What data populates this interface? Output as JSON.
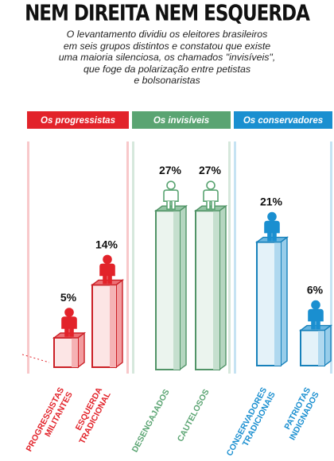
{
  "title": "NEM DIREITA NEM ESQUERDA",
  "subtitle_lines": [
    "O levantamento dividiu os eleitores brasileiros",
    "em seis grupos distintos e constatou que existe",
    "uma maioria silenciosa, os chamados \"invisíveis\",",
    "que foge da polarização entre petistas",
    "e bolsonaristas"
  ],
  "chart_data": {
    "type": "bar",
    "value_format": "percent",
    "groups": [
      {
        "name": "Os progressistas",
        "color": "#e2232a"
      },
      {
        "name": "Os invisíveis",
        "color": "#5aa472"
      },
      {
        "name": "Os conservadores",
        "color": "#1a8fd0"
      }
    ],
    "bars": [
      {
        "category_lines": [
          "PROGRESSISTAS",
          "MILITANTES"
        ],
        "value": 5,
        "group": 0,
        "label": "5%"
      },
      {
        "category_lines": [
          "ESQUERDA",
          "TRADICIONAL"
        ],
        "value": 14,
        "group": 0,
        "label": "14%"
      },
      {
        "category_lines": [
          "DESENGAJADOS"
        ],
        "value": 27,
        "group": 1,
        "label": "27%"
      },
      {
        "category_lines": [
          "CAUTELOSOS"
        ],
        "value": 27,
        "group": 1,
        "label": "27%"
      },
      {
        "category_lines": [
          "CONSERVADORES",
          "TRADICIONAIS"
        ],
        "value": 21,
        "group": 2,
        "label": "21%"
      },
      {
        "category_lines": [
          "PATRIOTAS",
          "INDIGNADOS"
        ],
        "value": 6,
        "group": 2,
        "label": "6%"
      }
    ]
  }
}
